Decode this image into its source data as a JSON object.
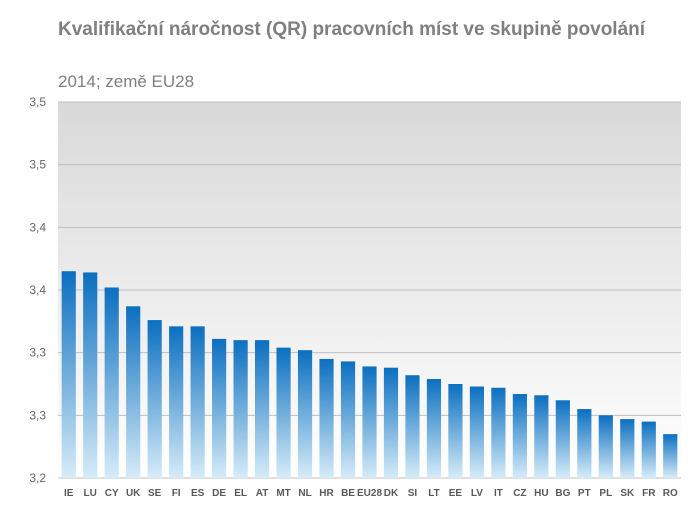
{
  "chart_data": {
    "type": "bar",
    "title": "Kvalifikační náročnost (QR)  pracovních míst ve skupině povolání",
    "subtitle": "2014; země EU28",
    "xlabel": "",
    "ylabel": "",
    "categories": [
      "IE",
      "LU",
      "CY",
      "UK",
      "SE",
      "FI",
      "ES",
      "DE",
      "EL",
      "AT",
      "MT",
      "NL",
      "HR",
      "BE",
      "EU28",
      "DK",
      "SI",
      "LT",
      "EE",
      "LV",
      "IT",
      "CZ",
      "HU",
      "BG",
      "PT",
      "PL",
      "SK",
      "FR",
      "RO"
    ],
    "values": [
      3.365,
      3.364,
      3.352,
      3.337,
      3.326,
      3.321,
      3.321,
      3.311,
      3.31,
      3.31,
      3.304,
      3.302,
      3.295,
      3.293,
      3.289,
      3.288,
      3.282,
      3.279,
      3.275,
      3.273,
      3.272,
      3.267,
      3.266,
      3.262,
      3.255,
      3.25,
      3.247,
      3.245,
      3.235
    ],
    "ylim": [
      3.2,
      3.5
    ],
    "yticks": [
      3.2,
      3.25,
      3.3,
      3.35,
      3.4,
      3.45,
      3.5
    ],
    "ytick_labels": [
      "3,2",
      "3,3",
      "3,3",
      "3,4",
      "3,4",
      "3,5",
      "3,5"
    ],
    "grid": true,
    "legend": "none",
    "colors": {
      "bar_top": "#0b6fc0",
      "bar_bottom": "#d6ecf8",
      "plot_bg_top": "#d9d9d9",
      "plot_bg_bottom": "#ffffff",
      "grid": "#bfbfbf"
    }
  }
}
